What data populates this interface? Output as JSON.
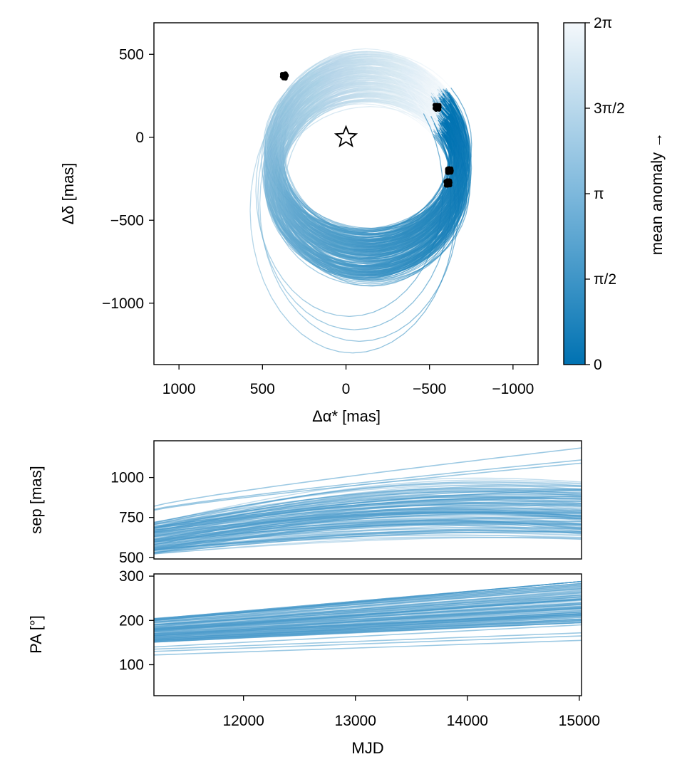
{
  "chart_data": [
    {
      "type": "line",
      "name": "sky-orbit-plot",
      "xlabel": "Δα* [mas]",
      "ylabel": "Δδ [mas]",
      "xlim": [
        1150,
        -1150
      ],
      "ylim": [
        -1370,
        690
      ],
      "x_ticks": [
        {
          "value": 1000,
          "label": "1000"
        },
        {
          "value": 500,
          "label": "500"
        },
        {
          "value": 0,
          "label": "0"
        },
        {
          "value": -500,
          "label": "−500"
        },
        {
          "value": -1000,
          "label": "−1000"
        }
      ],
      "y_ticks": [
        {
          "value": 500,
          "label": "500"
        },
        {
          "value": 0,
          "label": "0"
        },
        {
          "value": -500,
          "label": "−500"
        },
        {
          "value": -1000,
          "label": "−1000"
        }
      ],
      "star_marker": {
        "x": 0,
        "y": 0
      },
      "observation_clusters": [
        {
          "x": 370,
          "y": 370
        },
        {
          "x": -545,
          "y": 180
        },
        {
          "x": -620,
          "y": -200
        },
        {
          "x": -610,
          "y": -275
        }
      ],
      "orbit_family": {
        "count": 240,
        "main_center_x": [
          -90,
          -160
        ],
        "main_center_y": [
          -40,
          -330
        ],
        "main_semi_x": [
          520,
          600
        ],
        "main_semi_y": [
          500,
          580
        ],
        "outlier_centers": [
          [
            -20,
            -320
          ],
          [
            -50,
            -360
          ],
          [
            -80,
            -400
          ],
          [
            -40,
            -440
          ]
        ],
        "outlier_semi_y": [
          760,
          800,
          830,
          860
        ]
      },
      "colorbar": {
        "label": "mean anomaly →",
        "range": [
          0,
          6.283
        ],
        "color_low": "#0072b2",
        "color_high": "#f4f8fb",
        "ticks": [
          {
            "value": 0,
            "label": "0"
          },
          {
            "value": 1.5708,
            "label": "π/2"
          },
          {
            "value": 3.1416,
            "label": "π"
          },
          {
            "value": 4.7124,
            "label": "3π/2"
          },
          {
            "value": 6.2832,
            "label": "2π"
          }
        ]
      }
    },
    {
      "type": "line",
      "name": "separation-vs-time",
      "ylabel": "sep [mas]",
      "xlim": [
        11200,
        15020
      ],
      "ylim": [
        490,
        1230
      ],
      "y_ticks": [
        {
          "value": 500,
          "label": "500"
        },
        {
          "value": 750,
          "label": "750"
        },
        {
          "value": 1000,
          "label": "1000"
        }
      ],
      "band": {
        "start_low": 520,
        "start_high": 720,
        "peak_mjd": 14400,
        "end_low": 585,
        "end_high": 900,
        "count": 150
      },
      "outliers": [
        {
          "start": 820,
          "end": 1185
        },
        {
          "start": 800,
          "end": 1110
        },
        {
          "start": 795,
          "end": 1090
        }
      ],
      "line_color": "#4b9ccc"
    },
    {
      "type": "line",
      "name": "position-angle-vs-time",
      "ylabel": "PA [°]",
      "xlabel": "MJD",
      "xlim": [
        11200,
        15020
      ],
      "ylim": [
        30,
        305
      ],
      "x_ticks": [
        {
          "value": 12000,
          "label": "12000"
        },
        {
          "value": 13000,
          "label": "13000"
        },
        {
          "value": 14000,
          "label": "14000"
        },
        {
          "value": 15000,
          "label": "15000"
        }
      ],
      "y_ticks": [
        {
          "value": 100,
          "label": "100"
        },
        {
          "value": 200,
          "label": "200"
        },
        {
          "value": 300,
          "label": "300"
        }
      ],
      "band": {
        "start_low": 150,
        "start_high": 205,
        "end_low": 195,
        "end_high": 288,
        "count": 150
      },
      "outliers": [
        {
          "start": 140,
          "end": 190
        },
        {
          "start": 135,
          "end": 172
        },
        {
          "start": 130,
          "end": 165
        },
        {
          "start": 122,
          "end": 155
        }
      ],
      "line_color": "#4b9ccc"
    }
  ]
}
